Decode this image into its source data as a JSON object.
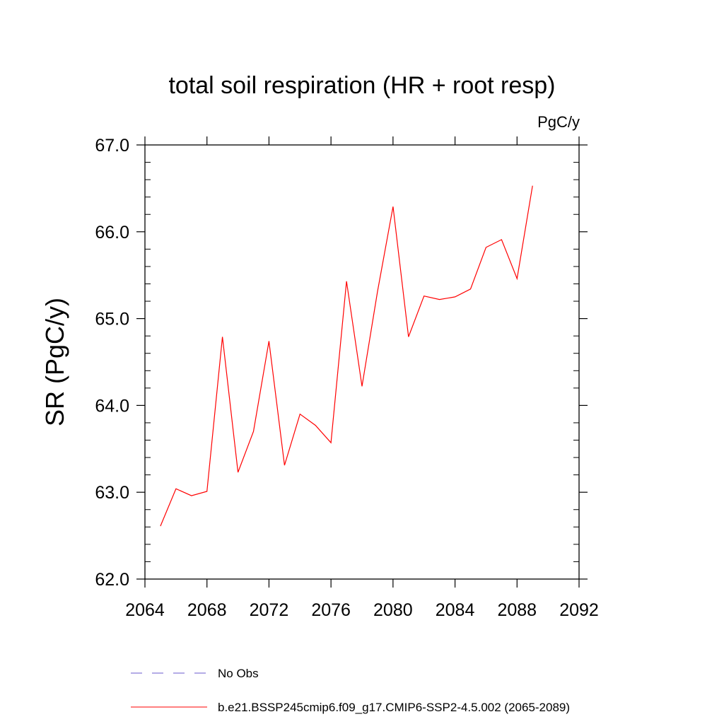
{
  "chart_data": {
    "type": "line",
    "title": "total soil respiration (HR + root resp)",
    "units_label": "PgC/y",
    "xlabel": "",
    "ylabel": "SR  (PgC/y)",
    "xlim": [
      2064,
      2092
    ],
    "ylim": [
      62.0,
      67.0
    ],
    "x_ticks": [
      2064,
      2068,
      2072,
      2076,
      2080,
      2084,
      2088,
      2092
    ],
    "x_tick_labels": [
      "2064",
      "2068",
      "2072",
      "2076",
      "2080",
      "2084",
      "2088",
      "2092"
    ],
    "y_ticks": [
      62.0,
      63.0,
      64.0,
      65.0,
      66.0,
      67.0
    ],
    "y_tick_labels": [
      "62.0",
      "63.0",
      "64.0",
      "65.0",
      "66.0",
      "67.0"
    ],
    "grid": false,
    "legend_position": "bottom",
    "series": [
      {
        "name": "b.e21.BSSP245cmip6.f09_g17.CMIP6-SSP2-4.5.002 (2065-2089)",
        "color": "#ff0000",
        "dash": "solid",
        "x": [
          2065,
          2066,
          2067,
          2068,
          2069,
          2070,
          2071,
          2072,
          2073,
          2074,
          2075,
          2076,
          2077,
          2078,
          2079,
          2080,
          2081,
          2082,
          2083,
          2084,
          2085,
          2086,
          2087,
          2088,
          2089
        ],
        "y": [
          62.61,
          63.04,
          62.96,
          63.01,
          64.79,
          63.23,
          63.7,
          64.74,
          63.31,
          63.9,
          63.77,
          63.57,
          65.43,
          64.22,
          65.31,
          66.29,
          64.79,
          65.26,
          65.22,
          65.25,
          65.34,
          65.82,
          65.91,
          65.46,
          66.53
        ]
      }
    ],
    "legend": [
      {
        "label": "No Obs",
        "color": "#6a5acd",
        "dash": "dashed"
      },
      {
        "label": "b.e21.BSSP245cmip6.f09_g17.CMIP6-SSP2-4.5.002 (2065-2089)",
        "color": "#ff0000",
        "dash": "solid"
      }
    ]
  }
}
